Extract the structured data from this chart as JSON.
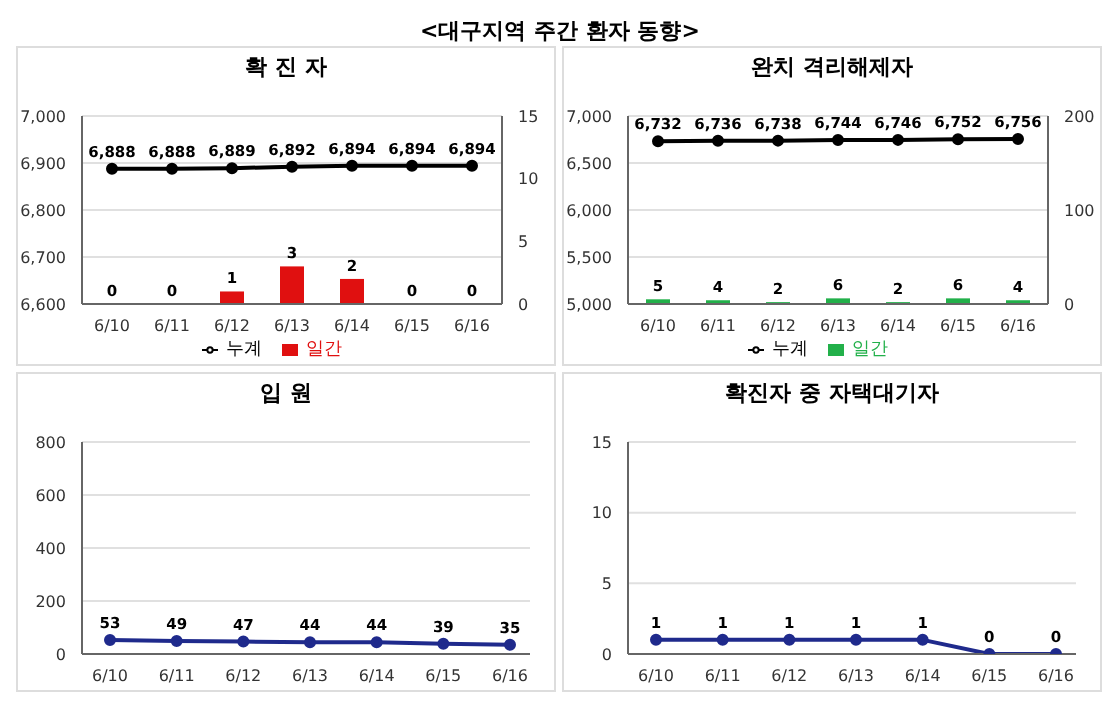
{
  "chart_data": [
    {
      "type": "other",
      "title": "<대구지역 주간 환자 동향>"
    },
    {
      "type": "bar",
      "title": "확 진 자",
      "categories": [
        "6/10",
        "6/11",
        "6/12",
        "6/13",
        "6/14",
        "6/15",
        "6/16"
      ],
      "series": [
        {
          "name": "일간",
          "type": "bar",
          "axis": "y2",
          "color": "#e01010",
          "values": [
            0,
            0,
            1,
            3,
            2,
            0,
            0
          ],
          "value_labels": [
            "0",
            "0",
            "1",
            "3",
            "2",
            "0",
            "0"
          ]
        },
        {
          "name": "누계",
          "type": "line",
          "color": "#000000",
          "values": [
            6888,
            6888,
            6889,
            6892,
            6894,
            6894,
            6894
          ],
          "value_labels": [
            "6,888",
            "6,888",
            "6,889",
            "6,892",
            "6,894",
            "6,894",
            "6,894"
          ]
        }
      ],
      "ylim": [
        6600,
        7000
      ],
      "yticks": [
        {
          "value": 6600,
          "label": "6,600"
        },
        {
          "value": 6700,
          "label": "6,700"
        },
        {
          "value": 6800,
          "label": "6,800"
        },
        {
          "value": 6900,
          "label": "6,900"
        },
        {
          "value": 7000,
          "label": "7,000"
        }
      ],
      "y2lim": [
        0,
        15
      ],
      "y2ticks": [
        0,
        5,
        10,
        15
      ],
      "grid": "y",
      "legend": "bottom",
      "marker": "circle"
    },
    {
      "type": "bar",
      "title": "완치 격리해제자",
      "categories": [
        "6/10",
        "6/11",
        "6/12",
        "6/13",
        "6/14",
        "6/15",
        "6/16"
      ],
      "series": [
        {
          "name": "일간",
          "type": "bar",
          "axis": "y2",
          "color": "#22b04a",
          "values": [
            5,
            4,
            2,
            6,
            2,
            6,
            4
          ],
          "value_labels": [
            "5",
            "4",
            "2",
            "6",
            "2",
            "6",
            "4"
          ]
        },
        {
          "name": "누계",
          "type": "line",
          "color": "#000000",
          "values": [
            6732,
            6736,
            6738,
            6744,
            6746,
            6752,
            6756
          ],
          "value_labels": [
            "6,732",
            "6,736",
            "6,738",
            "6,744",
            "6,746",
            "6,752",
            "6,756"
          ]
        }
      ],
      "ylim": [
        5000,
        7000
      ],
      "yticks": [
        {
          "value": 5000,
          "label": "5,000"
        },
        {
          "value": 5500,
          "label": "5,500"
        },
        {
          "value": 6000,
          "label": "6,000"
        },
        {
          "value": 6500,
          "label": "6,500"
        },
        {
          "value": 7000,
          "label": "7,000"
        }
      ],
      "y2lim": [
        0,
        200
      ],
      "y2ticks": [
        0,
        100,
        200
      ],
      "grid": "y",
      "legend": "bottom",
      "marker": "circle"
    },
    {
      "type": "line",
      "title": "입 원",
      "categories": [
        "6/10",
        "6/11",
        "6/12",
        "6/13",
        "6/14",
        "6/15",
        "6/16"
      ],
      "series": [
        {
          "color": "#1f2a8c",
          "values": [
            53,
            49,
            47,
            44,
            44,
            39,
            35
          ]
        }
      ],
      "ylim": [
        0,
        800
      ],
      "yticks": [
        0,
        200,
        400,
        600,
        800
      ],
      "data_labels": true,
      "grid": "y",
      "marker": "circle"
    },
    {
      "type": "line",
      "title": "확진자 중 자택대기자",
      "categories": [
        "6/10",
        "6/11",
        "6/12",
        "6/13",
        "6/14",
        "6/15",
        "6/16"
      ],
      "series": [
        {
          "color": "#1f2a8c",
          "values": [
            1,
            1,
            1,
            1,
            1,
            0,
            0
          ]
        }
      ],
      "ylim": [
        0,
        15
      ],
      "yticks": [
        0,
        5,
        10,
        15
      ],
      "data_labels": true,
      "grid": "y",
      "marker": "circle"
    }
  ]
}
